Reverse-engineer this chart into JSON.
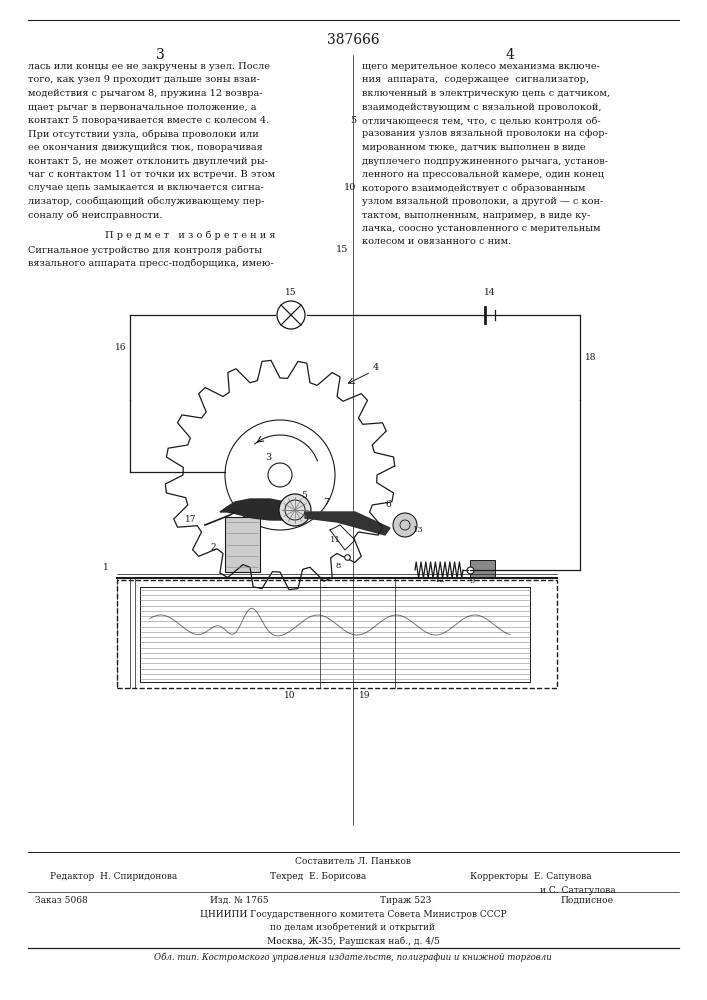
{
  "patent_number": "387666",
  "page_left": "3",
  "page_right": "4",
  "background_color": "#ffffff",
  "text_color": "#1a1a1a",
  "col1_text": [
    "лась или концы ее не закручены в узел. После",
    "того, как узел 9 проходит дальше зоны взаи-",
    "модействия с рычагом 8, пружина 12 возвра-",
    "щает рычаг в первоначальное положение, а",
    "контакт 5 поворачивается вместе с колесом 4.",
    "При отсутствии узла, обрыва проволоки или",
    "ее окончания движущийся тюк, поворачивая",
    "контакт 5, не может отклонить двуплечий ры-",
    "чаг с контактом 11 от точки их встречи. В этом",
    "случае цепь замыкается и включается сигна-",
    "лизатор, сообщающий обслуживающему пер-",
    "соналу об неисправности."
  ],
  "predmet_title": "П р е д м е т   и з о б р е т е н и я",
  "predmet_text": [
    "Сигнальное устройство для контроля работы",
    "вязального аппарата пресс-подборщика, имею-"
  ],
  "col1_linenum15": "15",
  "col2_text": [
    "щего мерительное колесо механизма включе-",
    "ния  аппарата,  содержащее  сигнализатор,",
    "включенный в электрическую цепь с датчиком,",
    "взаимодействующим с вязальной проволокой,",
    "отличающееся тем, что, с целью контроля об-",
    "разования узлов вязальной проволоки на сфор-",
    "мированном тюке, датчик выполнен в виде",
    "двуплечего подпружиненного рычага, установ-",
    "ленного на прессовальной камере, один конец",
    "которого взаимодействует с образованным",
    "узлом вязальной проволоки, а другой — с кон-",
    "тактом, выполненным, например, в виде ку-",
    "лачка, соосно установленного с мерительным",
    "колесом и овязанного с ним."
  ],
  "footer_sestavitel": "Составитель Л. Паньков",
  "footer_editor": "Редактор  Н. Спиридонова",
  "footer_techred": "Техред  Е. Борисова",
  "footer_correctors": "Корректоры  Е. Сапунова",
  "footer_correctors2": "и С. Сатагулова",
  "footer_zakaz": "Заказ 5068",
  "footer_izd": "Изд. № 1765",
  "footer_tirazh": "Тираж 523",
  "footer_podpisnoe": "Подписное",
  "footer_tsniipи": "ЦНИИПИ Государственного комитета Совета Министров СССР",
  "footer_po": "по делам изобретений и открытий",
  "footer_moskva": "Москва, Ж-35, Раушская наб., д. 4/5",
  "footer_obl": "Обл. тип. Костромского управления издательств, полиграфии и книжной торговли"
}
